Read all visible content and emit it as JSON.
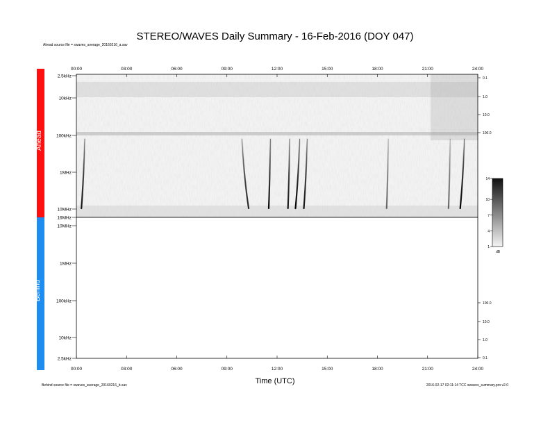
{
  "chart_data": {
    "type": "heatmap",
    "title": "STEREO/WAVES Daily Summary - 16-Feb-2016 (DOY 047)",
    "xlabel": "Time (UTC)",
    "x_ticks": [
      "00:00",
      "03:00",
      "06:00",
      "09:00",
      "12:00",
      "15:00",
      "18:00",
      "21:00",
      "24:00"
    ],
    "x_range_hours": [
      0,
      24
    ],
    "panels": [
      {
        "name": "Ahead",
        "source_note": "Ahead source file = swaves_average_20160216_a.sav",
        "freq_labels": [
          "2.5kHz",
          "10kHz",
          "100kHz",
          "1MHz",
          "10MHz",
          "16MHz"
        ],
        "right_ticks": [
          "0.1",
          "1.0",
          "10.0",
          "100.0"
        ],
        "bursts": [
          {
            "start": 0.5,
            "end": 0.3,
            "intensity": 0.9
          },
          {
            "start": 9.9,
            "end": 10.3,
            "intensity": 0.8
          },
          {
            "start": 11.6,
            "end": 11.5,
            "intensity": 0.95
          },
          {
            "start": 12.75,
            "end": 12.65,
            "intensity": 0.9
          },
          {
            "start": 13.35,
            "end": 13.1,
            "intensity": 1.0
          },
          {
            "start": 13.8,
            "end": 13.6,
            "intensity": 0.9
          },
          {
            "start": 18.65,
            "end": 18.55,
            "intensity": 0.5
          },
          {
            "start": 22.35,
            "end": 22.25,
            "intensity": 0.5
          },
          {
            "start": 23.2,
            "end": 22.95,
            "intensity": 1.0
          }
        ]
      },
      {
        "name": "Behind",
        "source_note": "Behind source file = swaves_average_20160216_b.sav",
        "freq_labels": [
          "10MHz",
          "1MHz",
          "100kHz",
          "10kHz",
          "2.5kHz"
        ],
        "right_ticks": [
          "100.0",
          "10.0",
          "1.0",
          "0.1"
        ]
      }
    ],
    "colorbar": {
      "ticks": [
        "14",
        "10",
        "7",
        "4",
        "1"
      ],
      "range": [
        1,
        14
      ],
      "unit": "dB",
      "scale": "grayscale"
    },
    "footer_note": "2016-02-17 02:11:14 TCC swaves_summary.pro v2.0"
  }
}
